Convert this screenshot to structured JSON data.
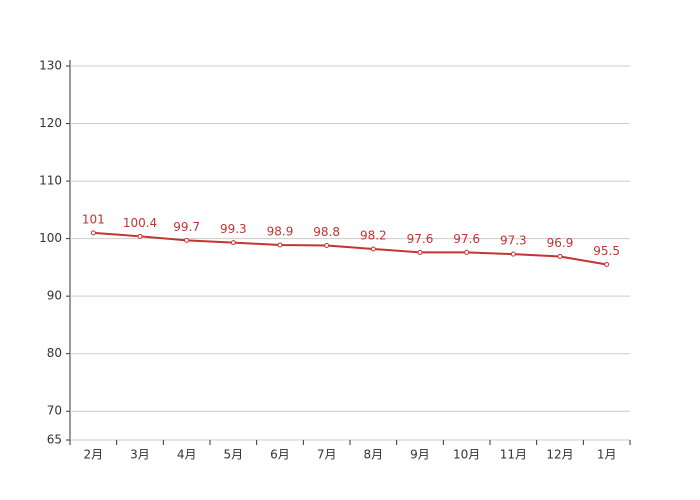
{
  "chart_data": {
    "type": "line",
    "categories": [
      "2月",
      "3月",
      "4月",
      "5月",
      "6月",
      "7月",
      "8月",
      "9月",
      "10月",
      "11月",
      "12月",
      "1月"
    ],
    "series": [
      {
        "color": "#c23531",
        "values": [
          101,
          100.4,
          99.7,
          99.3,
          98.9,
          98.8,
          98.2,
          97.6,
          97.6,
          97.3,
          96.9,
          95.5
        ]
      }
    ],
    "ylim": [
      65,
      130
    ],
    "yticks": [
      65,
      70,
      80,
      90,
      100,
      110,
      120,
      130
    ],
    "grid": true
  }
}
